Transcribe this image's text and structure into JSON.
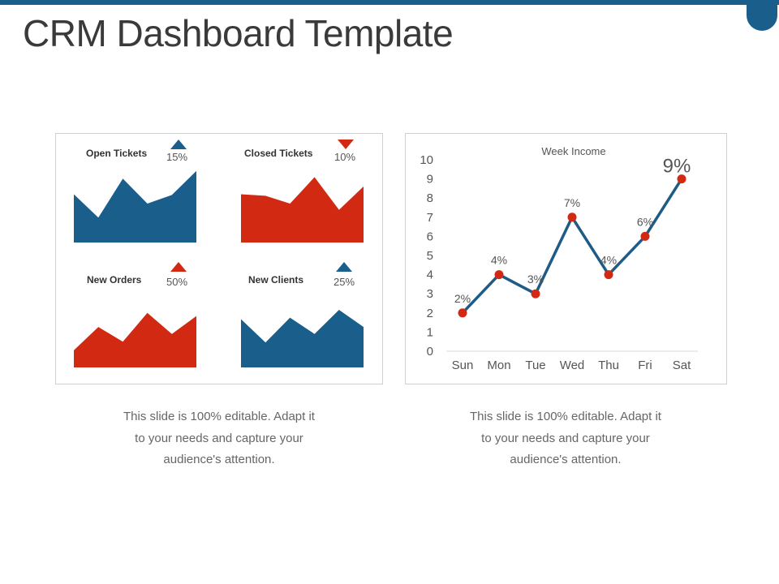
{
  "page": {
    "title": "CRM Dashboard Template",
    "captions": [
      [
        "This slide is 100% editable. Adapt it",
        "to your needs and capture your",
        "audience's attention."
      ],
      [
        "This slide is 100% editable. Adapt it",
        "to your needs and capture your",
        "audience's attention."
      ]
    ]
  },
  "colors": {
    "blue": "#1a5e8c",
    "red": "#d22a12",
    "line": "#1f5b87"
  },
  "chart_data": [
    {
      "type": "area",
      "title": "Open Tickets",
      "change_label": "15%",
      "trend": "up",
      "color": "blue",
      "values": [
        6.2,
        3.2,
        8.2,
        5.0,
        6.1,
        9.2
      ],
      "ylim": [
        0,
        10
      ]
    },
    {
      "type": "area",
      "title": "Closed Tickets",
      "change_label": "10%",
      "trend": "down",
      "color": "red",
      "values": [
        6.2,
        6.0,
        5.0,
        8.4,
        4.2,
        7.2
      ],
      "ylim": [
        0,
        10
      ]
    },
    {
      "type": "area",
      "title": "New Orders",
      "change_label": "50%",
      "trend": "up",
      "color": "red",
      "values": [
        2.2,
        5.2,
        3.3,
        7.0,
        4.3,
        6.6
      ],
      "ylim": [
        0,
        10
      ]
    },
    {
      "type": "area",
      "title": "New Clients",
      "change_label": "25%",
      "trend": "up",
      "color": "blue",
      "values": [
        6.2,
        3.2,
        6.4,
        4.3,
        7.4,
        5.2
      ],
      "ylim": [
        0,
        10
      ]
    },
    {
      "type": "line",
      "title": "Week Income",
      "categories": [
        "Sun",
        "Mon",
        "Tue",
        "Wed",
        "Thu",
        "Fri",
        "Sat"
      ],
      "values": [
        2,
        4,
        3,
        7,
        4,
        6,
        9
      ],
      "labels": [
        "2%",
        "4%",
        "3%",
        "7%",
        "4%",
        "6%",
        "9%"
      ],
      "yticks": [
        "0",
        "1",
        "2",
        "3",
        "4",
        "5",
        "6",
        "7",
        "8",
        "9",
        "10"
      ],
      "ylim": [
        0,
        10
      ],
      "grid": false
    }
  ]
}
